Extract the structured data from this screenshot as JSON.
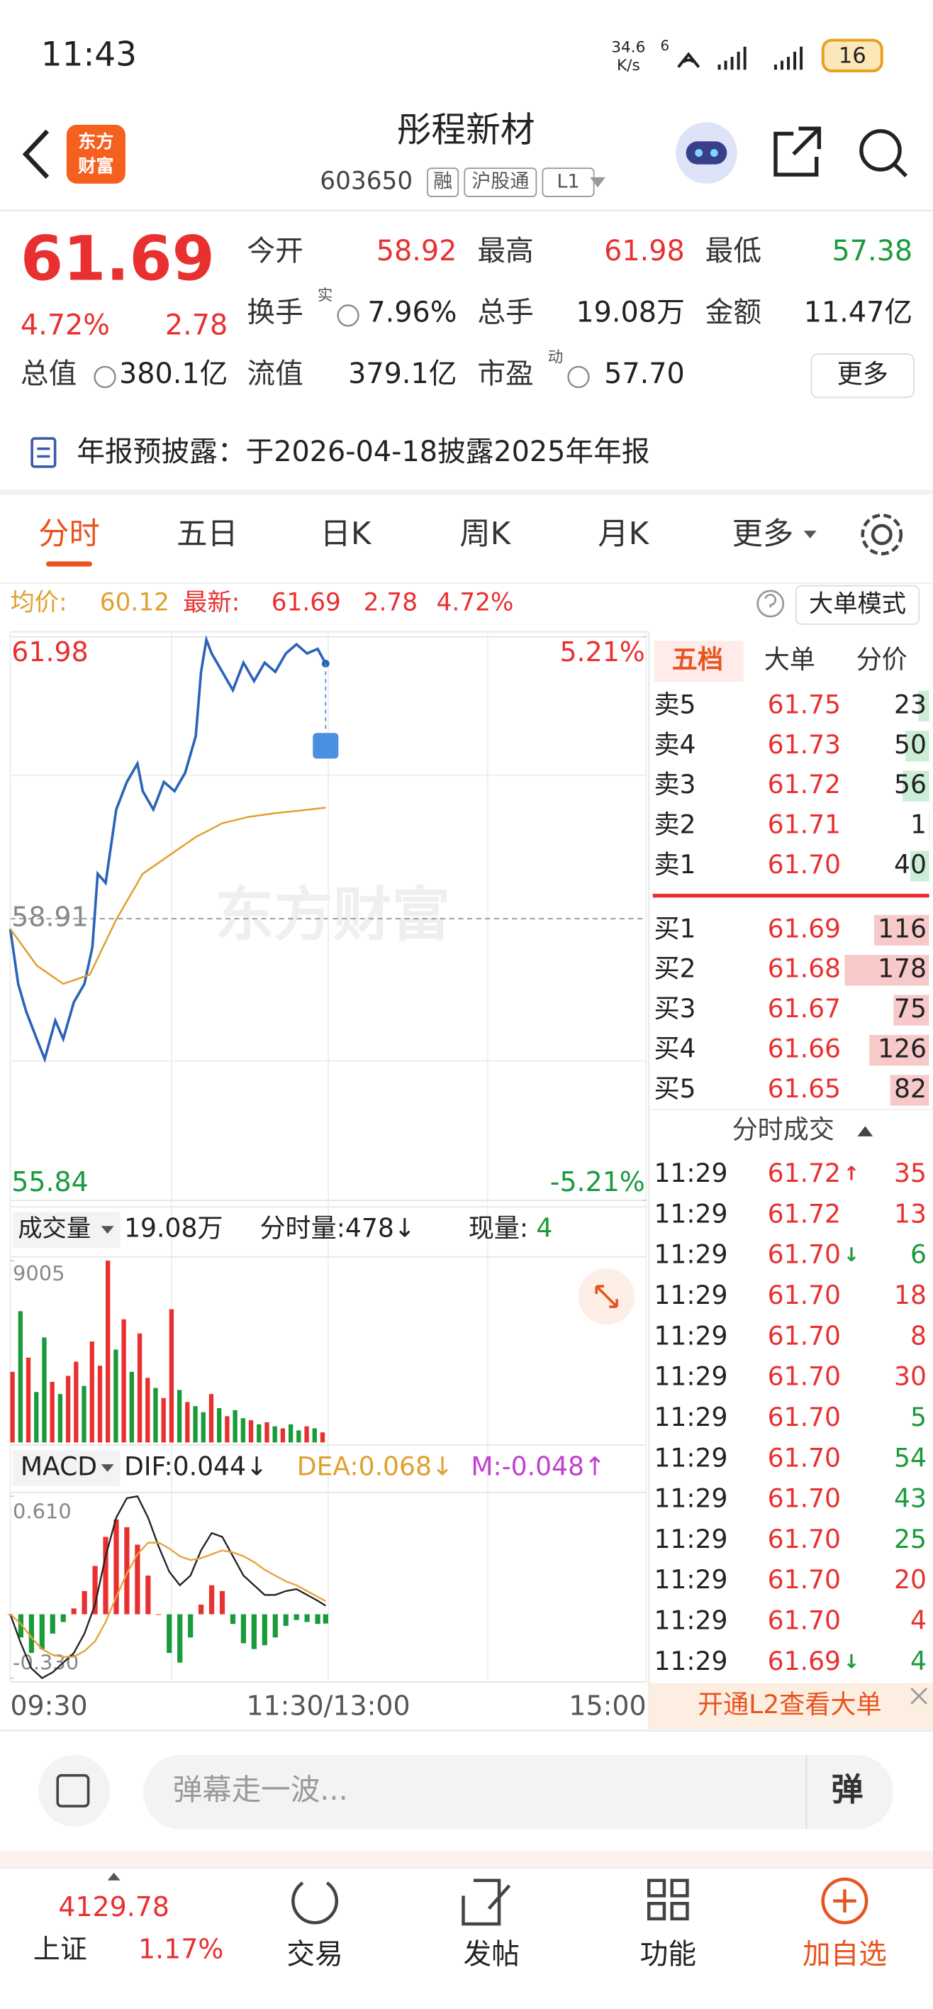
{
  "status_bar": {
    "time": "11:43",
    "speed": "34.6",
    "speed_unit": "K/s",
    "wifi_tag": "6",
    "battery": "16"
  },
  "header": {
    "logo": [
      "东方",
      "财富"
    ],
    "title": "彤程新材",
    "code": "603650",
    "tags": [
      "融",
      "沪股通",
      "L1"
    ]
  },
  "quote": {
    "price": "61.69",
    "change_pct": "4.72%",
    "change": "2.78",
    "color": "#e93030",
    "rows": [
      [
        {
          "label": "今开",
          "value": "58.92",
          "color": "#e93030"
        },
        {
          "label": "最高",
          "value": "61.98",
          "color": "#e93030"
        },
        {
          "label": "最低",
          "value": "57.38",
          "color": "#1a9b3a"
        }
      ],
      [
        {
          "label": "换手",
          "sup": "实",
          "icon": true,
          "value": "7.96%",
          "color": "#222222"
        },
        {
          "label": "总手",
          "value": "19.08万",
          "color": "#222222"
        },
        {
          "label": "金额",
          "value": "11.47亿",
          "color": "#222222"
        }
      ],
      [
        {
          "label": "总值",
          "icon": true,
          "value": "380.1亿",
          "color": "#222222"
        },
        {
          "label": "流值",
          "value": "379.1亿",
          "color": "#222222"
        },
        {
          "label": "市盈",
          "sup": "动",
          "icon": true,
          "value": "57.70",
          "color": "#222222"
        }
      ]
    ],
    "more": "更多"
  },
  "notice": "年报预披露：于2026-04-18披露2025年年报",
  "tabs": {
    "items": [
      "分时",
      "五日",
      "日K",
      "周K",
      "月K",
      "更多"
    ],
    "active": 0
  },
  "summary": {
    "avg_label": "均价:",
    "avg": "60.12",
    "latest_label": "最新:",
    "latest": "61.69",
    "change": "2.78",
    "pct": "4.72%",
    "mode": "大单模式"
  },
  "volume_header": {
    "label": "成交量",
    "total": "19.08万",
    "minute": "分时量:478↓",
    "current_label": "现量:",
    "current": "4"
  },
  "macd_header": {
    "label": "MACD",
    "dif": "DIF:0.044↓",
    "dea": "DEA:0.068↓",
    "m": "M:-0.048↑"
  },
  "chart_data": [
    {
      "type": "line",
      "watermark": "东方财富",
      "xlim": [
        0,
        240
      ],
      "xticks": [
        {
          "value": 0,
          "label": "09:30"
        },
        {
          "value": 120,
          "label": "11:30/13:00"
        },
        {
          "value": 240,
          "label": "15:00"
        }
      ],
      "ylim": [
        55.84,
        61.98
      ],
      "yticks": [
        55.84,
        58.91,
        61.98
      ],
      "y2lim": [
        -5.21,
        5.21
      ],
      "y2ticks": [
        {
          "value": 5.21,
          "label": "5.21%"
        },
        {
          "value": -5.21,
          "label": "-5.21%"
        }
      ],
      "series": [
        {
          "color": "#2b63b8",
          "x": [
            0,
            3,
            6,
            10,
            13,
            17,
            20,
            24,
            28,
            31,
            33,
            36,
            40,
            44,
            48,
            50,
            54,
            58,
            62,
            66,
            70,
            72,
            74,
            76,
            80,
            84,
            88,
            92,
            96,
            100,
            104,
            108,
            112,
            116,
            119
          ],
          "values": [
            58.8,
            58.2,
            57.9,
            57.6,
            57.38,
            57.8,
            57.6,
            58.0,
            58.2,
            58.6,
            59.4,
            59.3,
            60.1,
            60.4,
            60.6,
            60.3,
            60.1,
            60.4,
            60.3,
            60.5,
            60.9,
            61.6,
            61.95,
            61.8,
            61.6,
            61.4,
            61.7,
            61.5,
            61.7,
            61.6,
            61.8,
            61.9,
            61.8,
            61.85,
            61.69
          ]
        },
        {
          "color": "#e0a030",
          "x": [
            0,
            10,
            20,
            30,
            40,
            50,
            60,
            70,
            80,
            90,
            100,
            110,
            119
          ],
          "values": [
            58.8,
            58.4,
            58.2,
            58.3,
            58.9,
            59.4,
            59.6,
            59.8,
            59.95,
            60.02,
            60.06,
            60.09,
            60.12
          ]
        }
      ]
    },
    {
      "type": "bar",
      "xlim": [
        0,
        240
      ],
      "ylim": [
        0,
        9005
      ],
      "yticks": [
        9005
      ],
      "x": [
        0,
        3,
        6,
        9,
        12,
        15,
        18,
        21,
        24,
        27,
        30,
        33,
        36,
        39,
        42,
        45,
        48,
        51,
        54,
        57,
        60,
        63,
        66,
        69,
        72,
        75,
        78,
        81,
        84,
        87,
        90,
        93,
        96,
        99,
        102,
        105,
        108,
        111,
        114,
        117
      ],
      "values": [
        3500,
        6500,
        4200,
        2500,
        5200,
        3000,
        2400,
        3300,
        4000,
        2800,
        5000,
        3800,
        9005,
        4600,
        6100,
        3500,
        5400,
        3200,
        2700,
        2200,
        6600,
        2600,
        2000,
        1800,
        1500,
        2400,
        1700,
        1300,
        1600,
        1200,
        1100,
        900,
        1000,
        800,
        700,
        900,
        600,
        800,
        700,
        500
      ],
      "colors": [
        "#e93030",
        "#1a9b3a",
        "#e93030",
        "#1a9b3a",
        "#1a9b3a",
        "#e93030",
        "#1a9b3a",
        "#e93030",
        "#e93030",
        "#1a9b3a",
        "#e93030",
        "#e93030",
        "#e93030",
        "#1a9b3a",
        "#e93030",
        "#1a9b3a",
        "#e93030",
        "#e93030",
        "#1a9b3a",
        "#e93030",
        "#e93030",
        "#1a9b3a",
        "#e93030",
        "#1a9b3a",
        "#1a9b3a",
        "#e93030",
        "#1a9b3a",
        "#e93030",
        "#1a9b3a",
        "#1a9b3a",
        "#e93030",
        "#1a9b3a",
        "#e93030",
        "#1a9b3a",
        "#e93030",
        "#1a9b3a",
        "#1a9b3a",
        "#e93030",
        "#1a9b3a",
        "#e93030"
      ]
    },
    {
      "type": "macd",
      "xlim": [
        0,
        240
      ],
      "ylim": [
        -0.33,
        0.61
      ],
      "yticks": [
        {
          "value": 0.61,
          "label": "0.610"
        },
        {
          "value": -0.33,
          "label": "-0.330"
        }
      ],
      "up_color": "#e93030",
      "down_color": "#1a9b3a",
      "x": [
        0,
        4,
        8,
        12,
        16,
        20,
        24,
        28,
        32,
        36,
        40,
        44,
        48,
        52,
        56,
        60,
        64,
        68,
        72,
        76,
        80,
        84,
        88,
        92,
        96,
        100,
        104,
        108,
        112,
        116,
        119
      ],
      "series": [
        {
          "color": "#222222",
          "values": [
            0,
            -0.15,
            -0.28,
            -0.33,
            -0.3,
            -0.25,
            -0.2,
            -0.1,
            0.05,
            0.3,
            0.5,
            0.6,
            0.61,
            0.5,
            0.35,
            0.22,
            0.15,
            0.2,
            0.33,
            0.42,
            0.4,
            0.3,
            0.2,
            0.15,
            0.1,
            0.1,
            0.12,
            0.13,
            0.1,
            0.07,
            0.044
          ]
        },
        {
          "color": "#e8a23a",
          "values": [
            0,
            -0.05,
            -0.12,
            -0.18,
            -0.21,
            -0.22,
            -0.22,
            -0.19,
            -0.14,
            -0.04,
            0.09,
            0.21,
            0.31,
            0.37,
            0.37,
            0.34,
            0.3,
            0.28,
            0.29,
            0.31,
            0.33,
            0.32,
            0.3,
            0.27,
            0.23,
            0.2,
            0.17,
            0.15,
            0.12,
            0.09,
            0.068
          ]
        },
        {
          "values": [
            0,
            -0.12,
            -0.2,
            -0.18,
            -0.1,
            -0.04,
            0.03,
            0.12,
            0.25,
            0.4,
            0.49,
            0.45,
            0.36,
            0.2,
            0,
            -0.2,
            -0.25,
            -0.12,
            0.05,
            0.15,
            0.12,
            -0.05,
            -0.15,
            -0.18,
            -0.16,
            -0.12,
            -0.06,
            -0.03,
            -0.04,
            -0.05,
            -0.048
          ]
        }
      ]
    }
  ],
  "order_book": {
    "tabs": [
      "五档",
      "大单",
      "分价"
    ],
    "asks": [
      {
        "label": "卖5",
        "price": "61.75",
        "volume": 23
      },
      {
        "label": "卖4",
        "price": "61.73",
        "volume": 50
      },
      {
        "label": "卖3",
        "price": "61.72",
        "volume": 56
      },
      {
        "label": "卖2",
        "price": "61.71",
        "volume": 1
      },
      {
        "label": "卖1",
        "price": "61.70",
        "volume": 40
      }
    ],
    "bids": [
      {
        "label": "买1",
        "price": "61.69",
        "volume": 116
      },
      {
        "label": "买2",
        "price": "61.68",
        "volume": 178
      },
      {
        "label": "买3",
        "price": "61.67",
        "volume": 75
      },
      {
        "label": "买4",
        "price": "61.66",
        "volume": 126
      },
      {
        "label": "买5",
        "price": "61.65",
        "volume": 82
      }
    ]
  },
  "trades": {
    "title": "分时成交",
    "rows": [
      {
        "time": "11:29",
        "price": "61.72",
        "arrow": "↑",
        "volume": 35,
        "color": "#e93030"
      },
      {
        "time": "11:29",
        "price": "61.72",
        "volume": 13,
        "color": "#e93030"
      },
      {
        "time": "11:29",
        "price": "61.70",
        "arrow": "↓",
        "volume": 6,
        "color": "#1a9b3a"
      },
      {
        "time": "11:29",
        "price": "61.70",
        "volume": 18,
        "color": "#e93030"
      },
      {
        "time": "11:29",
        "price": "61.70",
        "volume": 8,
        "color": "#e93030"
      },
      {
        "time": "11:29",
        "price": "61.70",
        "volume": 30,
        "color": "#e93030"
      },
      {
        "time": "11:29",
        "price": "61.70",
        "volume": 5,
        "color": "#1a9b3a"
      },
      {
        "time": "11:29",
        "price": "61.70",
        "volume": 54,
        "color": "#1a9b3a"
      },
      {
        "time": "11:29",
        "price": "61.70",
        "volume": 43,
        "color": "#1a9b3a"
      },
      {
        "time": "11:29",
        "price": "61.70",
        "volume": 25,
        "color": "#1a9b3a"
      },
      {
        "time": "11:29",
        "price": "61.70",
        "volume": 20,
        "color": "#e93030"
      },
      {
        "time": "11:29",
        "price": "61.70",
        "volume": 4,
        "color": "#e93030"
      },
      {
        "time": "11:29",
        "price": "61.69",
        "arrow": "↓",
        "volume": 4,
        "color": "#1a9b3a"
      }
    ]
  },
  "l2_banner": "开通L2查看大单",
  "comment": {
    "placeholder": "弹幕走一波...",
    "button": "弹"
  },
  "nav": {
    "index": {
      "value": "4129.78",
      "name": "上证",
      "change": "1.17%"
    },
    "items": [
      {
        "label": "交易",
        "color": "#222222"
      },
      {
        "label": "发帖",
        "color": "#222222"
      },
      {
        "label": "功能",
        "color": "#222222"
      },
      {
        "label": "加自选",
        "color": "#e8541e"
      }
    ]
  }
}
